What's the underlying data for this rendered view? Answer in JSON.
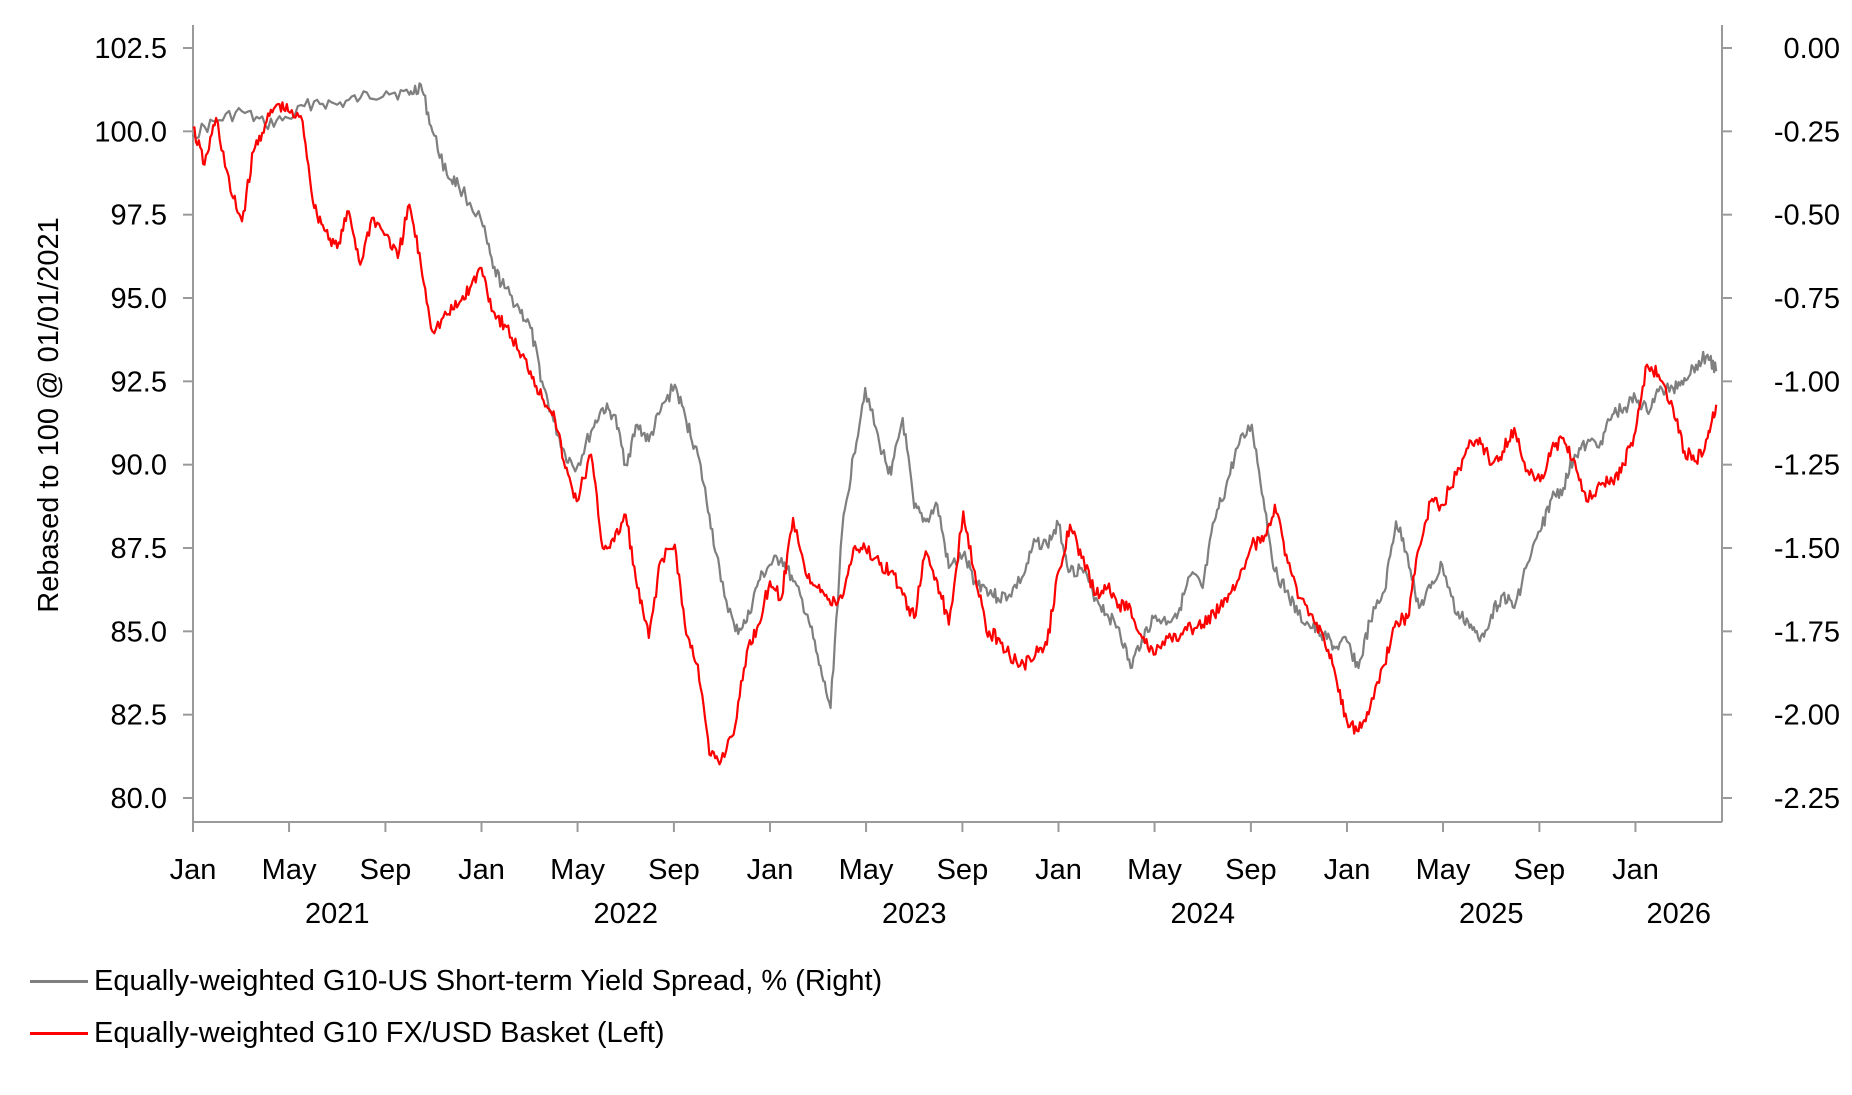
{
  "chart_data": {
    "type": "line",
    "title": "",
    "xlabel": "",
    "ylabel": "Rebased to 100 @ 01/01/2021",
    "y2label": "",
    "ylim": [
      79.5,
      103.5
    ],
    "y2lim": [
      -2.325,
      0.0
    ],
    "yticks": [
      "102.5",
      "100.0",
      "97.5",
      "95.0",
      "92.5",
      "90.0",
      "87.5",
      "85.0",
      "82.5",
      "80.0"
    ],
    "y2ticks": [
      "0.00",
      "-0.25",
      "-0.50",
      "-0.75",
      "-1.00",
      "-1.25",
      "-1.50",
      "-1.75",
      "-2.00",
      "-2.25"
    ],
    "xlim": [
      2021.0,
      2026.3
    ],
    "month_ticks": [
      {
        "t": 2021.0,
        "label": "Jan"
      },
      {
        "t": 2021.333,
        "label": "May"
      },
      {
        "t": 2021.667,
        "label": "Sep"
      },
      {
        "t": 2022.0,
        "label": "Jan"
      },
      {
        "t": 2022.333,
        "label": "May"
      },
      {
        "t": 2022.667,
        "label": "Sep"
      },
      {
        "t": 2023.0,
        "label": "Jan"
      },
      {
        "t": 2023.333,
        "label": "May"
      },
      {
        "t": 2023.667,
        "label": "Sep"
      },
      {
        "t": 2024.0,
        "label": "Jan"
      },
      {
        "t": 2024.333,
        "label": "May"
      },
      {
        "t": 2024.667,
        "label": "Sep"
      },
      {
        "t": 2025.0,
        "label": "Jan"
      },
      {
        "t": 2025.333,
        "label": "May"
      },
      {
        "t": 2025.667,
        "label": "Sep"
      },
      {
        "t": 2026.0,
        "label": "Jan"
      }
    ],
    "year_labels": [
      {
        "t": 2021.5,
        "label": "2021"
      },
      {
        "t": 2022.5,
        "label": "2022"
      },
      {
        "t": 2023.5,
        "label": "2023"
      },
      {
        "t": 2024.5,
        "label": "2024"
      },
      {
        "t": 2025.5,
        "label": "2025"
      },
      {
        "t": 2026.15,
        "label": "2026"
      }
    ],
    "series": [
      {
        "name": "Equally-weighted G10-US Short-term Yield Spread, % (Right)",
        "axis": "right",
        "color": "#7f7f7f",
        "x": [
          2021.0,
          2021.08,
          2021.17,
          2021.25,
          2021.33,
          2021.42,
          2021.5,
          2021.58,
          2021.67,
          2021.75,
          2021.79,
          2021.83,
          2021.88,
          2021.92,
          2022.0,
          2022.04,
          2022.08,
          2022.13,
          2022.17,
          2022.21,
          2022.25,
          2022.29,
          2022.33,
          2022.38,
          2022.42,
          2022.46,
          2022.5,
          2022.54,
          2022.58,
          2022.62,
          2022.67,
          2022.71,
          2022.75,
          2022.79,
          2022.83,
          2022.88,
          2022.92,
          2022.96,
          2023.0,
          2023.04,
          2023.08,
          2023.13,
          2023.17,
          2023.21,
          2023.25,
          2023.29,
          2023.33,
          2023.38,
          2023.42,
          2023.46,
          2023.5,
          2023.54,
          2023.58,
          2023.62,
          2023.67,
          2023.71,
          2023.75,
          2023.79,
          2023.83,
          2023.88,
          2023.92,
          2023.96,
          2024.0,
          2024.04,
          2024.08,
          2024.13,
          2024.17,
          2024.21,
          2024.25,
          2024.29,
          2024.33,
          2024.38,
          2024.42,
          2024.46,
          2024.5,
          2024.54,
          2024.58,
          2024.62,
          2024.67,
          2024.71,
          2024.75,
          2024.79,
          2024.83,
          2024.88,
          2024.92,
          2024.96,
          2025.0,
          2025.04,
          2025.08,
          2025.13,
          2025.17,
          2025.21,
          2025.25,
          2025.29,
          2025.33,
          2025.38,
          2025.42,
          2025.46,
          2025.5,
          2025.54,
          2025.58,
          2025.62,
          2025.67,
          2025.71,
          2025.75,
          2025.79,
          2025.83,
          2025.88,
          2025.92,
          2025.96,
          2026.0,
          2026.04,
          2026.08,
          2026.13,
          2026.17,
          2026.21,
          2026.25,
          2026.28
        ],
        "values": [
          -0.26,
          -0.22,
          -0.19,
          -0.23,
          -0.21,
          -0.16,
          -0.17,
          -0.15,
          -0.13,
          -0.14,
          -0.11,
          -0.25,
          -0.38,
          -0.41,
          -0.52,
          -0.66,
          -0.72,
          -0.78,
          -0.84,
          -1.0,
          -1.12,
          -1.22,
          -1.26,
          -1.15,
          -1.08,
          -1.1,
          -1.25,
          -1.13,
          -1.18,
          -1.09,
          -1.01,
          -1.12,
          -1.22,
          -1.4,
          -1.6,
          -1.75,
          -1.72,
          -1.6,
          -1.55,
          -1.53,
          -1.6,
          -1.7,
          -1.85,
          -1.98,
          -1.45,
          -1.22,
          -1.02,
          -1.19,
          -1.28,
          -1.11,
          -1.38,
          -1.42,
          -1.37,
          -1.56,
          -1.52,
          -1.6,
          -1.62,
          -1.65,
          -1.64,
          -1.58,
          -1.48,
          -1.49,
          -1.43,
          -1.57,
          -1.56,
          -1.65,
          -1.7,
          -1.74,
          -1.86,
          -1.77,
          -1.71,
          -1.72,
          -1.68,
          -1.58,
          -1.62,
          -1.42,
          -1.32,
          -1.2,
          -1.13,
          -1.35,
          -1.57,
          -1.63,
          -1.7,
          -1.74,
          -1.76,
          -1.8,
          -1.78,
          -1.86,
          -1.72,
          -1.63,
          -1.42,
          -1.52,
          -1.68,
          -1.62,
          -1.55,
          -1.7,
          -1.72,
          -1.78,
          -1.7,
          -1.64,
          -1.68,
          -1.56,
          -1.45,
          -1.35,
          -1.32,
          -1.22,
          -1.19,
          -1.18,
          -1.1,
          -1.08,
          -1.05,
          -1.09,
          -1.03,
          -1.02,
          -0.99,
          -0.95,
          -0.92,
          -0.97
        ]
      },
      {
        "name": "Equally-weighted G10 FX/USD Basket (Left)",
        "axis": "left",
        "color": "#ff0000",
        "x": [
          2021.0,
          2021.04,
          2021.08,
          2021.13,
          2021.17,
          2021.21,
          2021.25,
          2021.29,
          2021.33,
          2021.38,
          2021.42,
          2021.46,
          2021.5,
          2021.54,
          2021.58,
          2021.62,
          2021.67,
          2021.71,
          2021.75,
          2021.79,
          2021.83,
          2021.88,
          2021.92,
          2021.96,
          2022.0,
          2022.04,
          2022.08,
          2022.13,
          2022.17,
          2022.21,
          2022.25,
          2022.29,
          2022.33,
          2022.38,
          2022.42,
          2022.46,
          2022.5,
          2022.54,
          2022.58,
          2022.62,
          2022.67,
          2022.71,
          2022.75,
          2022.79,
          2022.83,
          2022.88,
          2022.92,
          2022.96,
          2023.0,
          2023.04,
          2023.08,
          2023.13,
          2023.17,
          2023.21,
          2023.25,
          2023.29,
          2023.33,
          2023.38,
          2023.42,
          2023.46,
          2023.5,
          2023.54,
          2023.58,
          2023.62,
          2023.67,
          2023.71,
          2023.75,
          2023.79,
          2023.83,
          2023.88,
          2023.92,
          2023.96,
          2024.0,
          2024.04,
          2024.08,
          2024.13,
          2024.17,
          2024.21,
          2024.25,
          2024.29,
          2024.33,
          2024.38,
          2024.42,
          2024.46,
          2024.5,
          2024.54,
          2024.58,
          2024.62,
          2024.67,
          2024.71,
          2024.75,
          2024.79,
          2024.83,
          2024.88,
          2024.92,
          2024.96,
          2025.0,
          2025.04,
          2025.08,
          2025.13,
          2025.17,
          2025.21,
          2025.25,
          2025.29,
          2025.33,
          2025.38,
          2025.42,
          2025.46,
          2025.5,
          2025.54,
          2025.58,
          2025.62,
          2025.67,
          2025.71,
          2025.75,
          2025.79,
          2025.83,
          2025.88,
          2025.92,
          2025.96,
          2026.0,
          2026.04,
          2026.08,
          2026.13,
          2026.17,
          2026.21,
          2026.25,
          2026.28
        ],
        "values": [
          100.1,
          99.0,
          100.4,
          98.2,
          97.3,
          99.4,
          100.2,
          100.8,
          100.6,
          100.3,
          97.7,
          97.0,
          96.5,
          97.6,
          96.0,
          97.4,
          96.9,
          96.2,
          97.8,
          96.0,
          94.0,
          94.5,
          94.8,
          95.3,
          95.9,
          94.6,
          94.2,
          93.4,
          92.8,
          92.0,
          91.6,
          89.9,
          88.9,
          90.3,
          87.5,
          87.7,
          88.5,
          86.3,
          84.8,
          87.1,
          87.6,
          84.9,
          84.0,
          81.3,
          81.1,
          82.2,
          84.4,
          85.2,
          86.5,
          86.0,
          88.4,
          86.6,
          86.4,
          85.8,
          86.0,
          87.5,
          87.5,
          87.0,
          86.8,
          86.1,
          85.4,
          87.4,
          86.5,
          85.2,
          88.6,
          86.8,
          85.0,
          84.8,
          84.3,
          84.0,
          84.3,
          84.6,
          86.8,
          88.2,
          87.2,
          86.1,
          86.3,
          85.8,
          85.7,
          84.8,
          84.3,
          84.8,
          84.8,
          85.1,
          85.2,
          85.5,
          86.0,
          86.5,
          87.6,
          87.7,
          88.8,
          87.3,
          86.0,
          85.5,
          84.8,
          83.7,
          82.3,
          82.0,
          82.7,
          84.0,
          85.3,
          85.4,
          87.5,
          88.9,
          88.8,
          89.7,
          90.5,
          90.8,
          90.0,
          90.4,
          91.1,
          89.8,
          89.5,
          90.5,
          90.8,
          90.1,
          88.9,
          89.4,
          89.5,
          90.0,
          91.0,
          93.0,
          92.7,
          91.7,
          90.4,
          90.1,
          90.8,
          91.8
        ]
      }
    ],
    "legend_position": "bottom-left"
  }
}
